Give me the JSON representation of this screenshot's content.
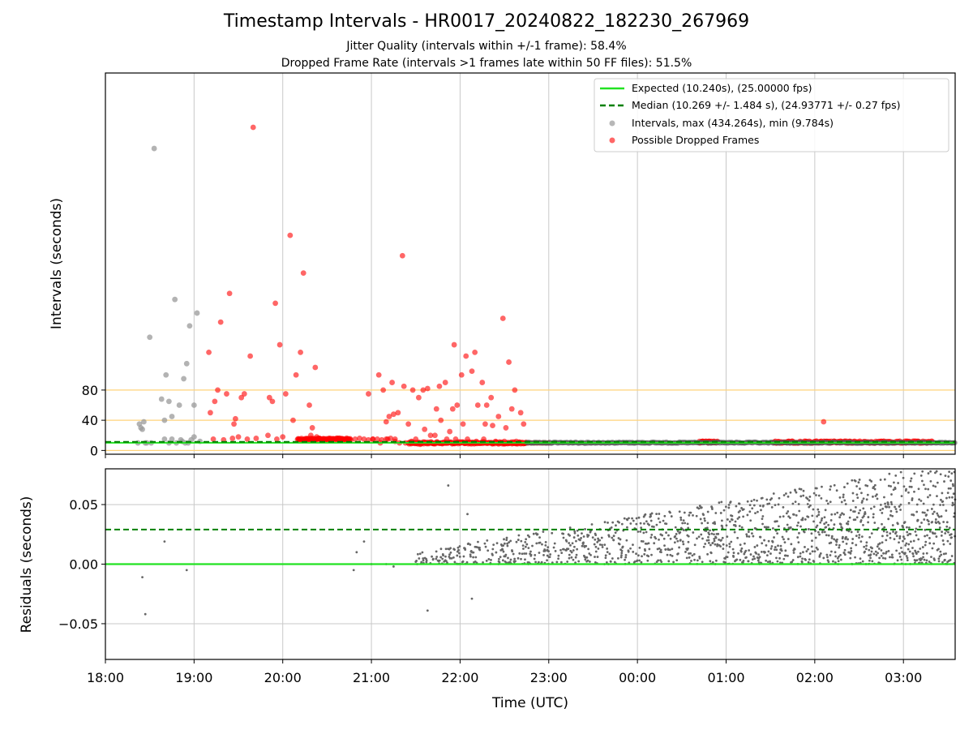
{
  "title": "Timestamp Intervals - HR0017_20240822_182230_267969",
  "subtitle_1": "Jitter Quality (intervals within +/-1 frame): 58.4%",
  "subtitle_2": "Dropped Frame Rate (intervals >1 frames late within 50 FF files): 51.5%",
  "chart_data": [
    {
      "type": "scatter",
      "ylabel": "Intervals (seconds)",
      "x_axis": "time",
      "xlim": [
        "18:00",
        "03:35"
      ],
      "ylim": [
        -5,
        500
      ],
      "yticks": [
        "0",
        "40",
        "80"
      ],
      "guide_lines": [
        0,
        40,
        80
      ],
      "grid": true,
      "legend_position": "top-right",
      "legend": [
        "Expected (10.240s), (25.00000 fps)",
        "Median (10.269 +/- 1.484 s), (24.93771 +/- 0.27 fps)",
        "Intervals, max (434.264s), min (9.784s)",
        "Possible Dropped Frames"
      ],
      "expected_interval": 10.24,
      "median_interval": 10.269,
      "colors": {
        "expected": "#22e222",
        "median": "#008000",
        "normal": "#999999",
        "dropped": "#ff0000",
        "guide": "#ffd37a",
        "grid": "#c8c8c8"
      },
      "normal_points": [
        [
          "18:22",
          10
        ],
        [
          "18:23",
          35
        ],
        [
          "18:24",
          30
        ],
        [
          "18:25",
          28
        ],
        [
          "18:26",
          38
        ],
        [
          "18:27",
          10
        ],
        [
          "18:28",
          10
        ],
        [
          "18:30",
          150
        ],
        [
          "18:31",
          10
        ],
        [
          "18:33",
          400
        ],
        [
          "18:38",
          68
        ],
        [
          "18:40",
          15
        ],
        [
          "18:40",
          40
        ],
        [
          "18:41",
          100
        ],
        [
          "18:43",
          65
        ],
        [
          "18:43",
          10
        ],
        [
          "18:45",
          15
        ],
        [
          "18:45",
          45
        ],
        [
          "18:47",
          200
        ],
        [
          "18:48",
          10
        ],
        [
          "18:50",
          60
        ],
        [
          "18:51",
          14
        ],
        [
          "18:52",
          12
        ],
        [
          "18:53",
          95
        ],
        [
          "18:54",
          10
        ],
        [
          "18:55",
          115
        ],
        [
          "18:56",
          10
        ],
        [
          "18:57",
          165
        ],
        [
          "18:58",
          14
        ],
        [
          "19:00",
          60
        ],
        [
          "19:00",
          18
        ],
        [
          "19:02",
          182
        ],
        [
          "19:04",
          12
        ]
      ],
      "dropped_points": [
        [
          "19:10",
          130
        ],
        [
          "19:11",
          50
        ],
        [
          "19:13",
          15
        ],
        [
          "19:14",
          65
        ],
        [
          "19:16",
          80
        ],
        [
          "19:18",
          170
        ],
        [
          "19:20",
          14
        ],
        [
          "19:22",
          75
        ],
        [
          "19:24",
          208
        ],
        [
          "19:26",
          16
        ],
        [
          "19:27",
          35
        ],
        [
          "19:28",
          42
        ],
        [
          "19:30",
          18
        ],
        [
          "19:32",
          70
        ],
        [
          "19:34",
          75
        ],
        [
          "19:36",
          15
        ],
        [
          "19:38",
          125
        ],
        [
          "19:40",
          428
        ],
        [
          "19:42",
          16
        ],
        [
          "19:50",
          20
        ],
        [
          "19:51",
          70
        ],
        [
          "19:53",
          65
        ],
        [
          "19:55",
          195
        ],
        [
          "19:56",
          15
        ],
        [
          "19:58",
          140
        ],
        [
          "20:00",
          18
        ],
        [
          "20:02",
          75
        ],
        [
          "20:05",
          285
        ],
        [
          "20:07",
          40
        ],
        [
          "20:09",
          100
        ],
        [
          "20:11",
          15
        ],
        [
          "20:12",
          130
        ],
        [
          "20:14",
          235
        ],
        [
          "20:16",
          15
        ],
        [
          "20:18",
          60
        ],
        [
          "20:19",
          20
        ],
        [
          "20:20",
          30
        ],
        [
          "20:22",
          110
        ],
        [
          "20:23",
          18
        ],
        [
          "20:25",
          16
        ],
        [
          "20:28",
          15
        ],
        [
          "20:31",
          15
        ],
        [
          "20:34",
          15
        ],
        [
          "20:37",
          14
        ],
        [
          "20:40",
          15
        ],
        [
          "20:43",
          15
        ],
        [
          "20:46",
          14
        ],
        [
          "20:49",
          15
        ],
        [
          "20:52",
          16
        ],
        [
          "20:55",
          15
        ],
        [
          "20:58",
          14
        ],
        [
          "21:01",
          15
        ],
        [
          "21:04",
          15
        ],
        [
          "21:07",
          14
        ],
        [
          "21:10",
          15
        ],
        [
          "21:13",
          16
        ],
        [
          "21:16",
          15
        ],
        [
          "20:58",
          75
        ],
        [
          "21:01",
          15
        ],
        [
          "21:05",
          100
        ],
        [
          "21:06",
          10
        ],
        [
          "21:08",
          80
        ],
        [
          "21:10",
          38
        ],
        [
          "21:11",
          15
        ],
        [
          "21:12",
          45
        ],
        [
          "21:14",
          90
        ],
        [
          "21:15",
          48
        ],
        [
          "21:16",
          12
        ],
        [
          "21:18",
          50
        ],
        [
          "21:19",
          10
        ],
        [
          "21:21",
          258
        ],
        [
          "21:22",
          85
        ],
        [
          "21:23",
          10
        ],
        [
          "21:25",
          35
        ],
        [
          "21:27",
          12
        ],
        [
          "21:28",
          80
        ],
        [
          "21:30",
          15
        ],
        [
          "21:32",
          70
        ],
        [
          "21:33",
          8
        ],
        [
          "21:35",
          80
        ],
        [
          "21:36",
          28
        ],
        [
          "21:38",
          82
        ],
        [
          "21:40",
          20
        ],
        [
          "21:41",
          10
        ],
        [
          "21:43",
          20
        ],
        [
          "21:44",
          55
        ],
        [
          "21:46",
          85
        ],
        [
          "21:47",
          40
        ],
        [
          "21:48",
          10
        ],
        [
          "21:50",
          90
        ],
        [
          "21:51",
          15
        ],
        [
          "21:53",
          25
        ],
        [
          "21:55",
          55
        ],
        [
          "21:56",
          140
        ],
        [
          "21:57",
          15
        ],
        [
          "21:58",
          60
        ],
        [
          "22:00",
          10
        ],
        [
          "22:01",
          100
        ],
        [
          "22:02",
          35
        ],
        [
          "22:04",
          125
        ],
        [
          "22:05",
          15
        ],
        [
          "22:06",
          10
        ],
        [
          "22:08",
          105
        ],
        [
          "22:10",
          130
        ],
        [
          "22:11",
          12
        ],
        [
          "22:12",
          60
        ],
        [
          "22:14",
          10
        ],
        [
          "22:15",
          90
        ],
        [
          "22:16",
          15
        ],
        [
          "22:17",
          35
        ],
        [
          "22:18",
          60
        ],
        [
          "22:19",
          10
        ],
        [
          "22:21",
          70
        ],
        [
          "22:22",
          33
        ],
        [
          "22:24",
          12
        ],
        [
          "22:26",
          45
        ],
        [
          "22:27",
          10
        ],
        [
          "22:29",
          175
        ],
        [
          "22:30",
          12
        ],
        [
          "22:31",
          30
        ],
        [
          "22:33",
          117
        ],
        [
          "22:34",
          10
        ],
        [
          "22:35",
          55
        ],
        [
          "22:37",
          80
        ],
        [
          "22:38",
          12
        ],
        [
          "22:40",
          10
        ],
        [
          "22:41",
          50
        ],
        [
          "22:43",
          35
        ],
        [
          "22:44",
          10
        ],
        [
          "22:46",
          10
        ],
        [
          "22:48",
          10
        ],
        [
          "22:50",
          10
        ],
        [
          "22:52",
          10
        ],
        [
          "22:54",
          10
        ],
        [
          "22:56",
          10
        ],
        [
          "22:58",
          10
        ],
        [
          "23:00",
          10
        ],
        [
          "00:42",
          12
        ],
        [
          "00:44",
          12
        ],
        [
          "00:46",
          12
        ],
        [
          "00:48",
          12
        ],
        [
          "00:50",
          12
        ],
        [
          "00:52",
          12
        ],
        [
          "02:06",
          38
        ]
      ],
      "dropped_dense_runs": [
        {
          "from": "20:10",
          "to": "20:46",
          "value": 15
        },
        {
          "from": "21:25",
          "to": "22:45",
          "value": 10
        },
        {
          "from": "00:42",
          "to": "00:55",
          "value": 11
        },
        {
          "from": "01:32",
          "to": "03:20",
          "value": 11
        }
      ]
    },
    {
      "type": "scatter",
      "xlabel": "Time (UTC)",
      "ylabel": "Residuals (seconds)",
      "xlim": [
        "18:00",
        "03:35"
      ],
      "ylim": [
        -0.08,
        0.08
      ],
      "xticks": [
        "18:00",
        "19:00",
        "20:00",
        "21:00",
        "22:00",
        "23:00",
        "00:00",
        "01:00",
        "02:00",
        "03:00"
      ],
      "yticks": [
        "−0.05",
        "0.00",
        "0.05"
      ],
      "zero_line": 0,
      "median_line": 0.029,
      "grid": true,
      "points": [
        [
          "18:25",
          -0.011
        ],
        [
          "18:27",
          -0.042
        ],
        [
          "18:40",
          0.019
        ],
        [
          "18:55",
          -0.005
        ],
        [
          "20:48",
          -0.005
        ],
        [
          "20:50",
          0.01
        ],
        [
          "20:55",
          0.019
        ],
        [
          "21:00",
          0.0
        ],
        [
          "21:10",
          0.0
        ],
        [
          "21:15",
          -0.002
        ],
        [
          "21:30",
          0.002
        ],
        [
          "21:45",
          0.003
        ],
        [
          "21:52",
          0.066
        ],
        [
          "21:38",
          -0.039
        ],
        [
          "22:08",
          -0.029
        ],
        [
          "22:05",
          0.042
        ]
      ],
      "dense_region": {
        "from": "21:30",
        "to": "03:35",
        "min": 0.0,
        "max": 0.08
      }
    }
  ]
}
